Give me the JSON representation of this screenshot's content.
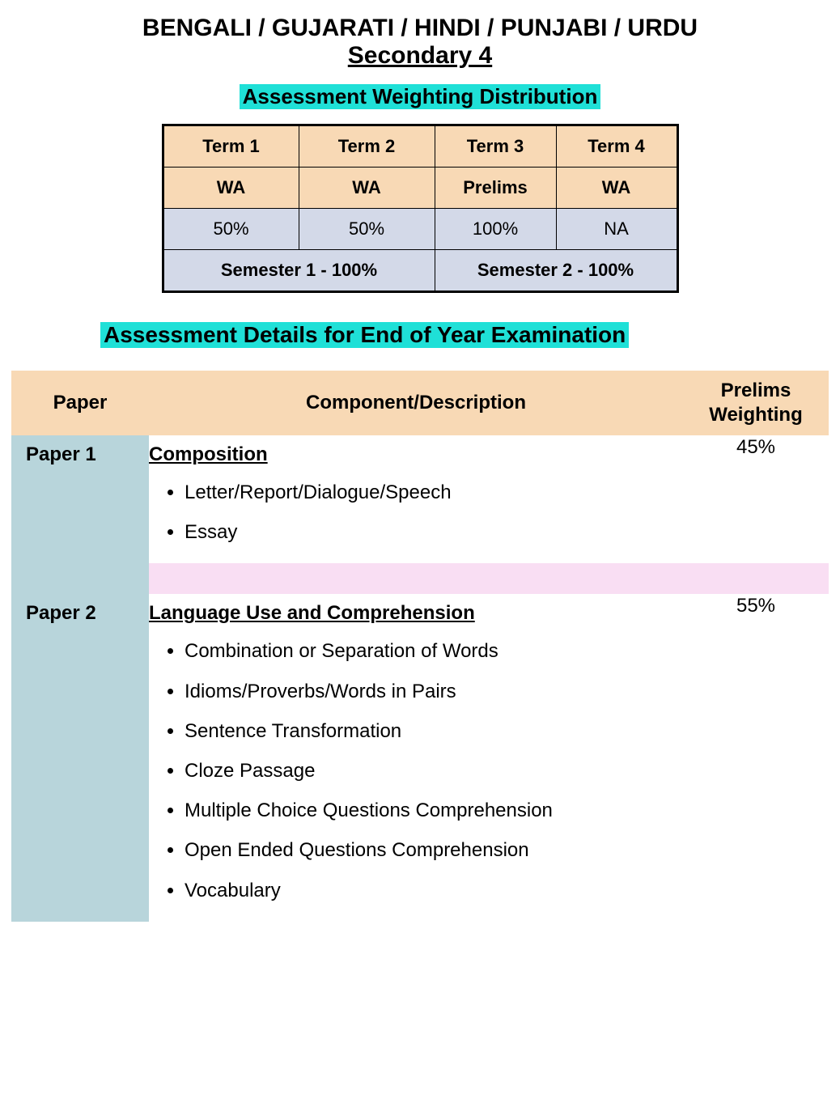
{
  "colors": {
    "highlight": "#1fe0d7",
    "table_header_bg": "#f8d9b5",
    "table_value_bg": "#d3d9e8",
    "paper_col_bg": "#b8d5db",
    "spacer_bg": "#f9def3",
    "text": "#000000",
    "page_bg": "#ffffff"
  },
  "title": {
    "line1": "BENGALI / GUJARATI / HINDI / PUNJABI / URDU",
    "line2": "Secondary 4"
  },
  "weighting": {
    "heading": "Assessment Weighting Distribution",
    "terms": [
      "Term 1",
      "Term 2",
      "Term 3",
      "Term 4"
    ],
    "types": [
      "WA",
      "WA",
      "Prelims",
      "WA"
    ],
    "values": [
      "50%",
      "50%",
      "100%",
      "NA"
    ],
    "semesters": [
      "Semester 1 - 100%",
      "Semester 2 - 100%"
    ]
  },
  "details": {
    "heading": "Assessment Details for End of Year Examination",
    "columns": [
      "Paper",
      "Component/Description",
      "Prelims Weighting"
    ],
    "papers": [
      {
        "name": "Paper 1",
        "component_title": "Composition",
        "items": [
          "Letter/Report/Dialogue/Speech",
          "Essay"
        ],
        "weight": "45%"
      },
      {
        "name": "Paper 2",
        "component_title": "Language Use and Comprehension",
        "items": [
          "Combination or Separation of Words",
          "Idioms/Proverbs/Words in Pairs",
          "Sentence Transformation",
          "Cloze Passage",
          "Multiple Choice Questions Comprehension",
          "Open Ended Questions Comprehension",
          "Vocabulary"
        ],
        "weight": "55%"
      }
    ]
  }
}
